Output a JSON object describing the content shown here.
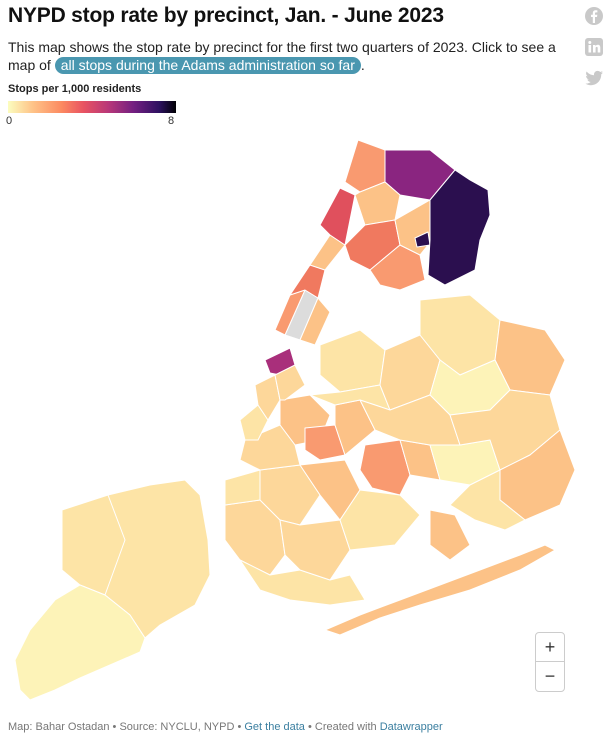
{
  "title": "NYPD stop rate by precinct, Jan. - June 2023",
  "description": {
    "text_before": "This map shows the stop rate by precinct for the first two quarters of 2023. Click to see a map of ",
    "link_text": "all stops during the Adams administration so far",
    "text_after": "."
  },
  "share_icons": [
    "facebook-icon",
    "linkedin-icon",
    "twitter-icon"
  ],
  "legend": {
    "title": "Stops per 1,000 residents",
    "min": "0",
    "max": "8",
    "colors": [
      "#fcfdbf",
      "#fec287",
      "#fc8961",
      "#e85362",
      "#b73779",
      "#721f81",
      "#2d1160",
      "#000004"
    ]
  },
  "map_colors": {
    "palest": "#fdf3b8",
    "pale": "#fde4a6",
    "light": "#fdd79a",
    "peach": "#fcc287",
    "orange": "#f99a70",
    "coral": "#f0795f",
    "red": "#e0505d",
    "magenta": "#a92f7b",
    "purple": "#8a2580",
    "dark": "#2b0f4f",
    "nodata": "#dcdcdc"
  },
  "zoom": {
    "in": "+",
    "out": "−"
  },
  "footer": {
    "prefix": "Map: Bahar Ostadan • Source: NYCLU, NYPD • ",
    "get_data": "Get the data",
    "middle": " • Created with ",
    "created_with": "Datawrapper"
  }
}
